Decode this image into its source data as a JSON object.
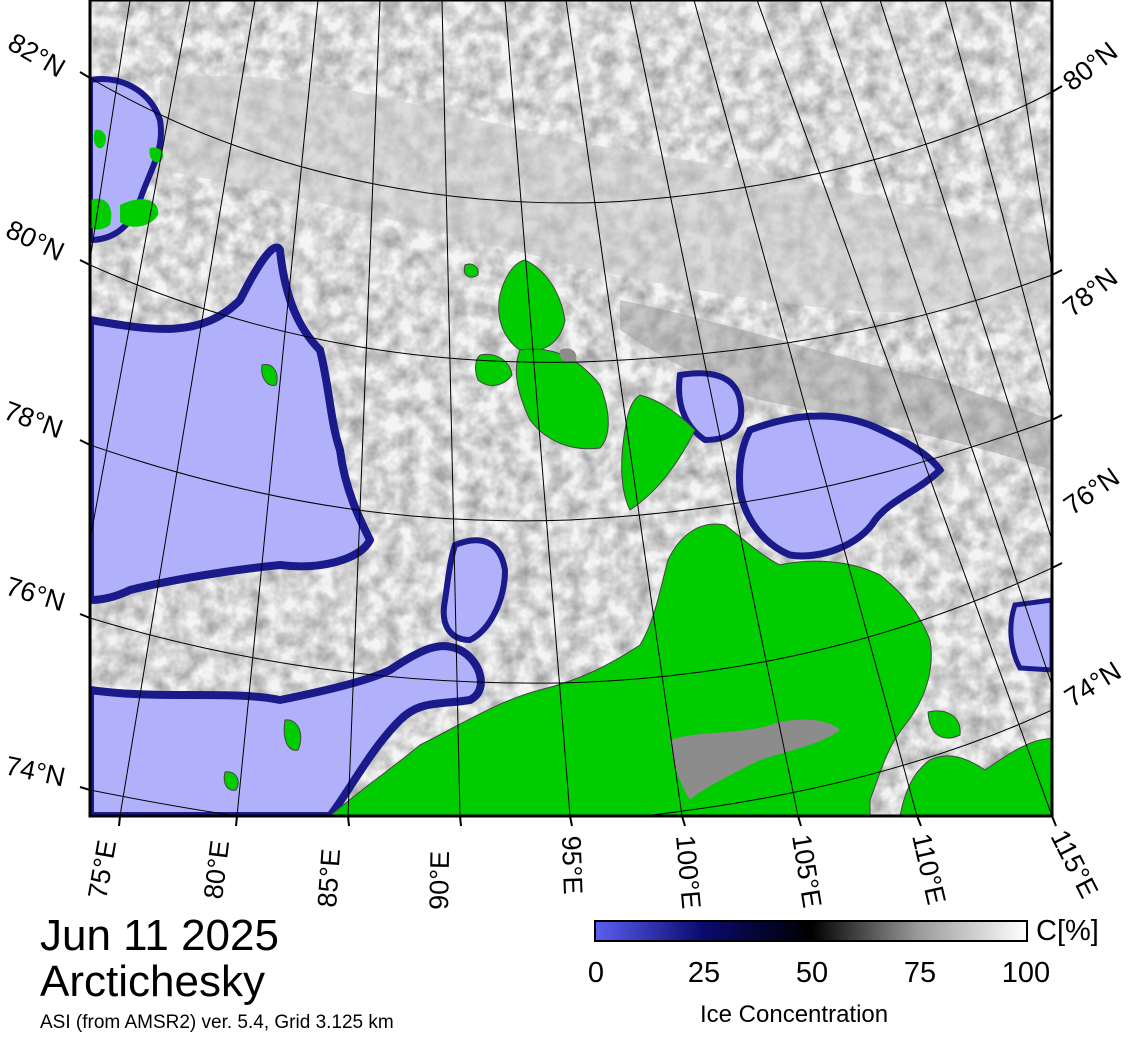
{
  "date": "Jun 11 2025",
  "region": "Arctichesky",
  "source": "ASI (from AMSR2) ver. 5.4,  Grid 3.125 km",
  "legend": {
    "title": "Ice Concentration",
    "unit": "C[%]",
    "ticks": [
      "0",
      "25",
      "50",
      "75",
      "100"
    ],
    "gradient": [
      "#5a5ef0",
      "#0a0a6e",
      "#000000",
      "#9a9a9a",
      "#ffffff"
    ]
  },
  "map": {
    "latitude_labels_left": [
      "82°N",
      "80°N",
      "78°N",
      "76°N",
      "74°N"
    ],
    "latitude_labels_right": [
      "80°N",
      "78°N",
      "76°N",
      "74°N"
    ],
    "longitude_labels": [
      "75°E",
      "80°E",
      "85°E",
      "90°E",
      "95°E",
      "100°E",
      "105°E",
      "110°E",
      "115°E"
    ],
    "colors": {
      "land": "#00cc00",
      "open_water": "#b0b0fb",
      "ice_edge": "#1a1a8a",
      "land_ice": "#8c8c8c",
      "sea_ice": "#f2f2f2"
    }
  }
}
